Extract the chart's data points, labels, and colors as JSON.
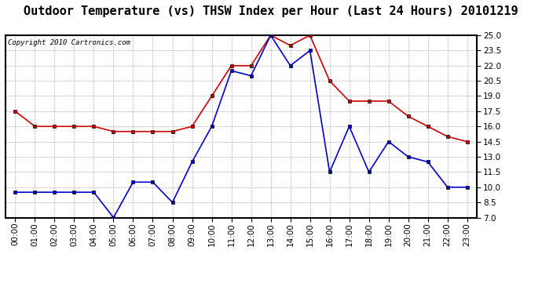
{
  "title": "Outdoor Temperature (vs) THSW Index per Hour (Last 24 Hours) 20101219",
  "copyright": "Copyright 2010 Cartronics.com",
  "hours": [
    0,
    1,
    2,
    3,
    4,
    5,
    6,
    7,
    8,
    9,
    10,
    11,
    12,
    13,
    14,
    15,
    16,
    17,
    18,
    19,
    20,
    21,
    22,
    23
  ],
  "red_data": [
    17.5,
    16.0,
    16.0,
    16.0,
    16.0,
    15.5,
    15.5,
    15.5,
    15.5,
    16.0,
    19.0,
    22.0,
    22.0,
    25.0,
    24.0,
    25.0,
    20.5,
    18.5,
    18.5,
    18.5,
    17.0,
    16.0,
    15.0,
    14.5
  ],
  "blue_data": [
    9.5,
    9.5,
    9.5,
    9.5,
    9.5,
    7.0,
    10.5,
    10.5,
    8.5,
    12.5,
    16.0,
    21.5,
    21.0,
    25.0,
    22.0,
    23.5,
    11.5,
    16.0,
    11.5,
    14.5,
    13.0,
    12.5,
    10.0,
    10.0
  ],
  "red_color": "#cc0000",
  "blue_color": "#0000cc",
  "marker_color": "#000000",
  "background_color": "#ffffff",
  "grid_color": "#aaaaaa",
  "ylim": [
    7.0,
    25.0
  ],
  "yticks": [
    7.0,
    8.5,
    10.0,
    11.5,
    13.0,
    14.5,
    16.0,
    17.5,
    19.0,
    20.5,
    22.0,
    23.5,
    25.0
  ],
  "title_fontsize": 11,
  "copyright_fontsize": 6.5,
  "axis_fontsize": 7.5,
  "marker_size": 3.5,
  "line_width": 1.2
}
